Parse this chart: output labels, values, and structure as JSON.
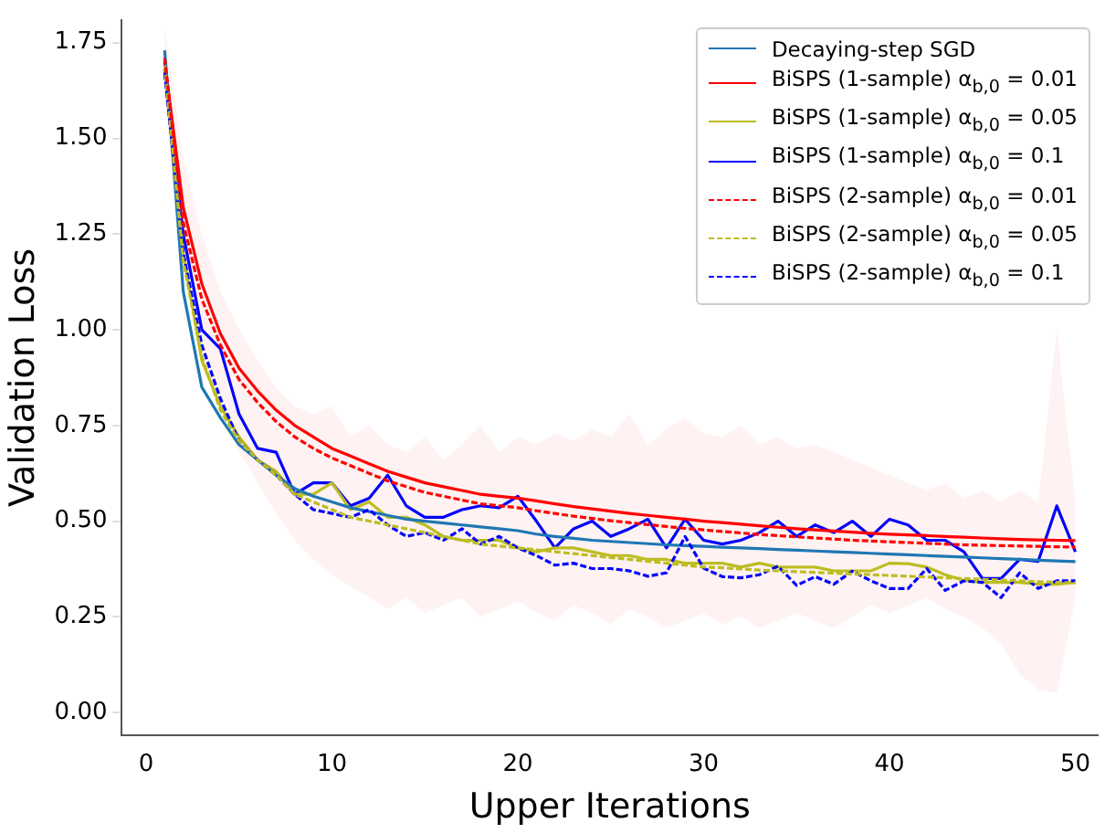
{
  "chart_data": {
    "type": "line",
    "xlabel": "Upper Iterations",
    "ylabel": "Validation Loss",
    "x": [
      1,
      2,
      3,
      4,
      5,
      6,
      7,
      8,
      9,
      10,
      11,
      12,
      13,
      14,
      15,
      16,
      17,
      18,
      19,
      20,
      21,
      22,
      23,
      24,
      25,
      26,
      27,
      28,
      29,
      30,
      31,
      32,
      33,
      34,
      35,
      36,
      37,
      38,
      39,
      40,
      41,
      42,
      43,
      44,
      45,
      46,
      47,
      48,
      49,
      50
    ],
    "xlim": [
      -1.3,
      51.2
    ],
    "xticks": [
      0,
      10,
      20,
      30,
      40,
      50
    ],
    "ylim": [
      -0.06,
      1.81
    ],
    "yticks": [
      {
        "value": 0,
        "label": "0.00"
      },
      {
        "value": 0.25,
        "label": "0.25"
      },
      {
        "value": 0.5,
        "label": "0.50"
      },
      {
        "value": 0.75,
        "label": "0.75"
      },
      {
        "value": 1,
        "label": "1.00"
      },
      {
        "value": 1.25,
        "label": "1.25"
      },
      {
        "value": 1.5,
        "label": "1.50"
      },
      {
        "value": 1.75,
        "label": "1.75"
      }
    ],
    "grid": false,
    "legend": "top right",
    "series": [
      {
        "name": "Decaying-step SGD",
        "color": "#1f77b4",
        "line_style": "solid",
        "values": [
          1.73,
          1.1,
          0.85,
          0.77,
          0.7,
          0.66,
          0.62,
          0.585,
          0.565,
          0.55,
          0.535,
          0.525,
          0.515,
          0.505,
          0.5,
          0.495,
          0.49,
          0.485,
          0.48,
          0.475,
          0.466,
          0.46,
          0.455,
          0.45,
          0.447,
          0.444,
          0.441,
          0.438,
          0.436,
          0.434,
          0.432,
          0.43,
          0.428,
          0.426,
          0.424,
          0.422,
          0.42,
          0.418,
          0.416,
          0.414,
          0.412,
          0.41,
          0.408,
          0.406,
          0.404,
          0.402,
          0.4,
          0.398,
          0.396,
          0.394
        ]
      },
      {
        "name": "BiSPS (1-sample) α$_{b,0}$ = 0.01",
        "color": "#ff0000",
        "line_style": "solid",
        "values": [
          1.7,
          1.32,
          1.12,
          0.99,
          0.9,
          0.84,
          0.79,
          0.75,
          0.72,
          0.69,
          0.67,
          0.65,
          0.63,
          0.615,
          0.6,
          0.59,
          0.58,
          0.57,
          0.565,
          0.56,
          0.553,
          0.545,
          0.538,
          0.532,
          0.526,
          0.52,
          0.515,
          0.51,
          0.505,
          0.5,
          0.496,
          0.492,
          0.488,
          0.484,
          0.48,
          0.477,
          0.474,
          0.471,
          0.468,
          0.466,
          0.464,
          0.462,
          0.46,
          0.458,
          0.456,
          0.454,
          0.452,
          0.451,
          0.45,
          0.449
        ],
        "upper": [
          1.8,
          1.45,
          1.25,
          1.1,
          1.0,
          0.92,
          0.85,
          0.8,
          0.78,
          0.8,
          0.72,
          0.75,
          0.7,
          0.68,
          0.72,
          0.66,
          0.7,
          0.75,
          0.68,
          0.72,
          0.7,
          0.73,
          0.71,
          0.74,
          0.72,
          0.78,
          0.7,
          0.74,
          0.77,
          0.73,
          0.72,
          0.75,
          0.7,
          0.72,
          0.69,
          0.7,
          0.68,
          0.66,
          0.64,
          0.62,
          0.6,
          0.58,
          0.6,
          0.56,
          0.58,
          0.55,
          0.58,
          0.55,
          1.0,
          0.55
        ],
        "lower": [
          1.6,
          1.15,
          0.95,
          0.8,
          0.68,
          0.6,
          0.52,
          0.45,
          0.4,
          0.36,
          0.33,
          0.3,
          0.27,
          0.3,
          0.26,
          0.28,
          0.3,
          0.25,
          0.27,
          0.29,
          0.26,
          0.24,
          0.28,
          0.26,
          0.23,
          0.27,
          0.25,
          0.22,
          0.24,
          0.26,
          0.23,
          0.25,
          0.22,
          0.24,
          0.26,
          0.24,
          0.22,
          0.25,
          0.28,
          0.26,
          0.28,
          0.3,
          0.27,
          0.25,
          0.22,
          0.18,
          0.1,
          0.06,
          0.05,
          0.3
        ]
      },
      {
        "name": "BiSPS (1-sample) α$_{b,0}$ = 0.05",
        "color": "#bcbd22",
        "line_style": "solid",
        "values": [
          1.7,
          1.2,
          0.92,
          0.8,
          0.72,
          0.66,
          0.63,
          0.57,
          0.57,
          0.6,
          0.53,
          0.55,
          0.51,
          0.51,
          0.49,
          0.46,
          0.45,
          0.45,
          0.45,
          0.43,
          0.42,
          0.43,
          0.43,
          0.42,
          0.41,
          0.41,
          0.4,
          0.4,
          0.39,
          0.39,
          0.39,
          0.38,
          0.39,
          0.38,
          0.38,
          0.38,
          0.37,
          0.37,
          0.37,
          0.39,
          0.389,
          0.38,
          0.36,
          0.345,
          0.34,
          0.34,
          0.34,
          0.335,
          0.335,
          0.34
        ]
      },
      {
        "name": "BiSPS (1-sample) α$_{b,0}$ = 0.1",
        "color": "#0000ff",
        "line_style": "solid",
        "values": [
          1.68,
          1.25,
          1.0,
          0.95,
          0.78,
          0.69,
          0.68,
          0.57,
          0.6,
          0.6,
          0.54,
          0.56,
          0.62,
          0.54,
          0.51,
          0.51,
          0.53,
          0.54,
          0.535,
          0.565,
          0.5,
          0.43,
          0.48,
          0.5,
          0.46,
          0.48,
          0.505,
          0.43,
          0.505,
          0.45,
          0.44,
          0.45,
          0.47,
          0.5,
          0.46,
          0.49,
          0.47,
          0.5,
          0.46,
          0.505,
          0.49,
          0.45,
          0.45,
          0.42,
          0.35,
          0.35,
          0.4,
          0.395,
          0.54,
          0.42
        ]
      },
      {
        "name": "BiSPS (2-sample) α$_{b,0}$ = 0.01",
        "color": "#ff0000",
        "line_style": "dashed",
        "values": [
          1.71,
          1.28,
          1.08,
          0.96,
          0.87,
          0.81,
          0.76,
          0.72,
          0.69,
          0.665,
          0.645,
          0.625,
          0.605,
          0.59,
          0.575,
          0.565,
          0.555,
          0.545,
          0.54,
          0.535,
          0.527,
          0.52,
          0.513,
          0.507,
          0.501,
          0.496,
          0.491,
          0.486,
          0.481,
          0.477,
          0.473,
          0.469,
          0.465,
          0.462,
          0.459,
          0.456,
          0.453,
          0.45,
          0.448,
          0.446,
          0.444,
          0.442,
          0.44,
          0.438,
          0.437,
          0.436,
          0.435,
          0.434,
          0.433,
          0.432
        ]
      },
      {
        "name": "BiSPS (2-sample) α$_{b,0}$ = 0.05",
        "color": "#bcbd22",
        "line_style": "dashed",
        "values": [
          1.69,
          1.18,
          0.93,
          0.79,
          0.71,
          0.66,
          0.62,
          0.57,
          0.55,
          0.53,
          0.51,
          0.5,
          0.49,
          0.48,
          0.47,
          0.46,
          0.45,
          0.44,
          0.435,
          0.43,
          0.425,
          0.42,
          0.415,
          0.41,
          0.405,
          0.4,
          0.395,
          0.39,
          0.385,
          0.38,
          0.378,
          0.375,
          0.372,
          0.37,
          0.368,
          0.366,
          0.364,
          0.362,
          0.36,
          0.358,
          0.356,
          0.354,
          0.352,
          0.35,
          0.348,
          0.346,
          0.344,
          0.342,
          0.34,
          0.338
        ]
      },
      {
        "name": "BiSPS (2-sample) α$_{b,0}$ = 0.1",
        "color": "#0000ff",
        "line_style": "dashed",
        "values": [
          1.67,
          1.2,
          0.96,
          0.82,
          0.71,
          0.66,
          0.62,
          0.57,
          0.53,
          0.52,
          0.51,
          0.53,
          0.49,
          0.46,
          0.47,
          0.45,
          0.48,
          0.44,
          0.46,
          0.43,
          0.41,
          0.385,
          0.39,
          0.376,
          0.376,
          0.37,
          0.356,
          0.365,
          0.46,
          0.377,
          0.355,
          0.352,
          0.36,
          0.382,
          0.332,
          0.355,
          0.335,
          0.369,
          0.344,
          0.324,
          0.324,
          0.376,
          0.319,
          0.344,
          0.34,
          0.3,
          0.365,
          0.324,
          0.344,
          0.344
        ]
      }
    ]
  }
}
